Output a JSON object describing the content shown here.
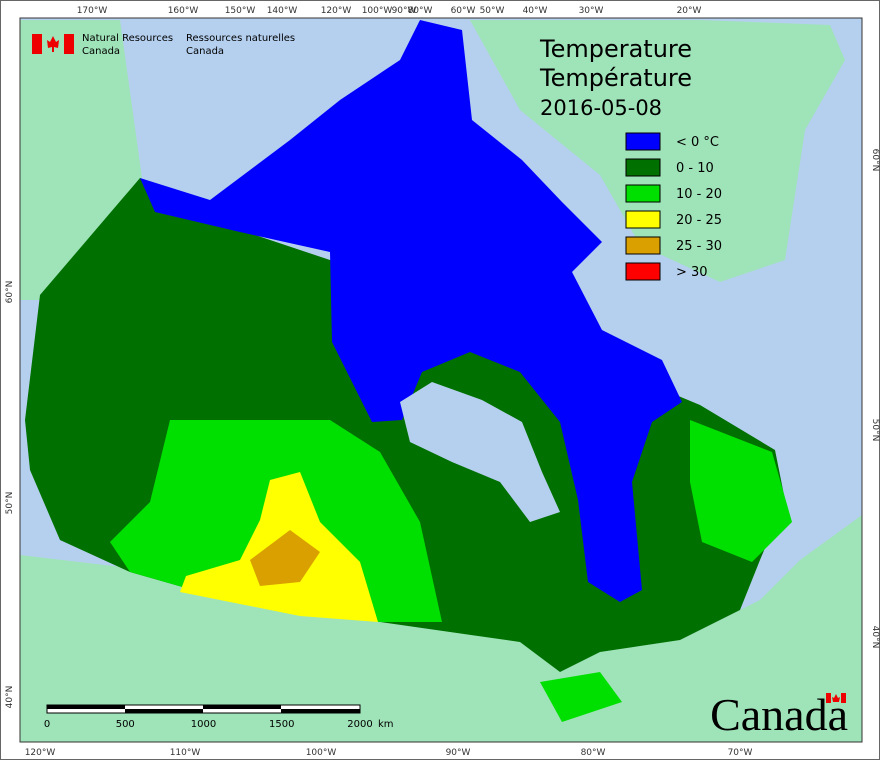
{
  "header": {
    "agency_en": [
      "Natural Resources",
      "Canada"
    ],
    "agency_fr": [
      "Ressources naturelles",
      "Canada"
    ]
  },
  "title": [
    "Temperature",
    "Température"
  ],
  "date": "2016-05-08",
  "legend": [
    {
      "label": "< 0 °C",
      "color": "#0000ff"
    },
    {
      "label": "0 - 10",
      "color": "#007000"
    },
    {
      "label": "10 - 20",
      "color": "#00e000"
    },
    {
      "label": "20 - 25",
      "color": "#ffff00"
    },
    {
      "label": "25 - 30",
      "color": "#d9a000"
    },
    {
      "label": "> 30",
      "color": "#ff0000"
    }
  ],
  "graticule": {
    "top": [
      "170°W",
      "160°W",
      "150°W",
      "140°W",
      "120°W",
      "100°W",
      "90°W",
      "80°W",
      "60°W",
      "50°W",
      "40°W",
      "30°W",
      "20°W"
    ],
    "bottom": [
      "120°W",
      "110°W",
      "100°W",
      "90°W",
      "80°W",
      "70°W"
    ],
    "left": [
      "60°N",
      "50°N",
      "40°N"
    ],
    "right": [
      "60°N",
      "50°N",
      "40°N"
    ]
  },
  "scale_bar": {
    "labels": [
      "0",
      "500",
      "1000",
      "1500",
      "2000"
    ],
    "unit": "km"
  },
  "wordmark": "Canada"
}
